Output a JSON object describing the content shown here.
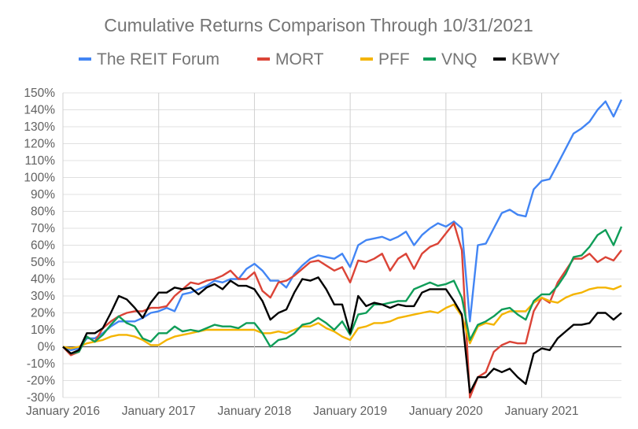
{
  "chart_data": {
    "type": "line",
    "title": "Cumulative Returns Comparison Through 10/31/2021",
    "xlabel": "",
    "ylabel": "",
    "ylim": [
      -30,
      150
    ],
    "y_tick_step": 10,
    "y_tick_suffix": "%",
    "grid": true,
    "legend_position": "top",
    "x_tick_labels": [
      {
        "index": 0,
        "label": "January 2016"
      },
      {
        "index": 12,
        "label": "January 2017"
      },
      {
        "index": 24,
        "label": "January 2018"
      },
      {
        "index": 36,
        "label": "January 2019"
      },
      {
        "index": 48,
        "label": "January 2020"
      },
      {
        "index": 60,
        "label": "January 2021"
      }
    ],
    "n_points": 71,
    "series": [
      {
        "name": "The REIT Forum",
        "color": "#4285f4",
        "values": [
          0,
          -2,
          -1,
          5,
          5,
          8,
          12,
          15,
          15,
          15,
          17,
          20,
          21,
          23,
          21,
          31,
          32,
          34,
          36,
          39,
          38,
          40,
          40,
          46,
          49,
          45,
          39,
          39,
          35,
          43,
          48,
          52,
          54,
          53,
          52,
          55,
          47,
          60,
          63,
          64,
          65,
          63,
          65,
          68,
          60,
          66,
          70,
          73,
          71,
          74,
          70,
          15,
          60,
          61,
          70,
          79,
          81,
          78,
          77,
          93,
          98,
          99,
          108,
          117,
          126,
          129,
          133,
          140,
          145,
          136,
          146
        ]
      },
      {
        "name": "MORT",
        "color": "#db4437",
        "values": [
          0,
          -5,
          -3,
          6,
          3,
          11,
          15,
          18,
          20,
          21,
          21,
          23,
          23,
          24,
          30,
          34,
          38,
          37,
          39,
          40,
          42,
          45,
          40,
          40,
          44,
          33,
          29,
          38,
          39,
          42,
          46,
          50,
          51,
          48,
          45,
          47,
          38,
          51,
          50,
          52,
          55,
          45,
          52,
          55,
          46,
          55,
          59,
          61,
          67,
          73,
          57,
          -30,
          -18,
          -15,
          -3,
          1,
          3,
          2,
          2,
          21,
          29,
          26,
          38,
          45,
          52,
          52,
          55,
          50,
          53,
          51,
          57
        ]
      },
      {
        "name": "PFF",
        "color": "#f4b400",
        "values": [
          0,
          -1,
          0,
          2,
          3,
          4,
          6,
          7,
          7,
          6,
          4,
          1,
          1,
          4,
          6,
          7,
          8,
          9,
          10,
          10,
          10,
          10,
          10,
          10,
          10,
          8,
          8,
          9,
          8,
          10,
          12,
          12,
          14,
          11,
          9,
          6,
          4,
          11,
          12,
          14,
          14,
          15,
          17,
          18,
          19,
          20,
          21,
          20,
          23,
          25,
          18,
          2,
          12,
          14,
          13,
          19,
          21,
          21,
          21,
          26,
          29,
          27,
          26,
          29,
          31,
          32,
          34,
          35,
          35,
          34,
          36
        ]
      },
      {
        "name": "VNQ",
        "color": "#0f9d58",
        "values": [
          0,
          -4,
          -3,
          6,
          3,
          7,
          13,
          18,
          14,
          12,
          5,
          3,
          8,
          8,
          12,
          9,
          10,
          9,
          11,
          13,
          12,
          12,
          11,
          14,
          14,
          8,
          0,
          4,
          5,
          8,
          13,
          14,
          17,
          14,
          10,
          15,
          7,
          19,
          20,
          25,
          25,
          26,
          27,
          27,
          34,
          36,
          38,
          36,
          37,
          39,
          29,
          4,
          13,
          15,
          18,
          22,
          23,
          19,
          16,
          27,
          31,
          31,
          36,
          43,
          53,
          54,
          59,
          66,
          69,
          60,
          71
        ]
      },
      {
        "name": "KBWY",
        "color": "#000000",
        "values": [
          0,
          -4,
          -2,
          8,
          8,
          11,
          20,
          30,
          28,
          23,
          17,
          26,
          32,
          32,
          35,
          34,
          35,
          31,
          35,
          37,
          34,
          39,
          36,
          36,
          34,
          27,
          16,
          20,
          22,
          32,
          40,
          39,
          41,
          34,
          25,
          25,
          8,
          30,
          24,
          26,
          25,
          23,
          25,
          24,
          24,
          32,
          34,
          34,
          34,
          27,
          19,
          -27,
          -18,
          -18,
          -13,
          -15,
          -13,
          -18,
          -22,
          -4,
          -1,
          -2,
          5,
          9,
          13,
          13,
          14,
          20,
          20,
          16,
          20
        ]
      }
    ]
  }
}
